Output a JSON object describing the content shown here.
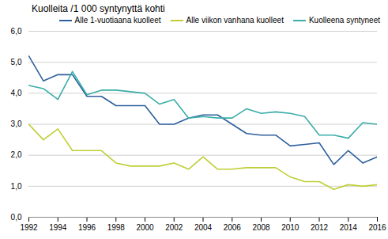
{
  "chart_data": {
    "type": "line",
    "title": "Kuolleita /1 000 syntynyttä  kohti",
    "x": [
      1992,
      1993,
      1994,
      1995,
      1996,
      1997,
      1998,
      1999,
      2000,
      2001,
      2002,
      2003,
      2004,
      2005,
      2006,
      2007,
      2008,
      2009,
      2010,
      2011,
      2012,
      2013,
      2014,
      2015,
      2016
    ],
    "series": [
      {
        "name": "Alle 1-vuotiaana kuolleet",
        "color": "#2E5F9E",
        "values": [
          5.2,
          4.4,
          4.6,
          4.6,
          3.9,
          3.9,
          3.6,
          3.6,
          3.6,
          3.0,
          3.0,
          3.2,
          3.3,
          3.3,
          3.0,
          2.7,
          2.65,
          2.65,
          2.3,
          2.35,
          2.4,
          1.7,
          2.15,
          1.75,
          1.95
        ]
      },
      {
        "name": "Alle viikon vanhana kuolleet",
        "color": "#BFCE35",
        "values": [
          3.0,
          2.5,
          2.85,
          2.15,
          2.15,
          2.15,
          1.75,
          1.65,
          1.65,
          1.65,
          1.75,
          1.55,
          1.95,
          1.55,
          1.55,
          1.6,
          1.6,
          1.6,
          1.3,
          1.15,
          1.15,
          0.9,
          1.05,
          1.0,
          1.05
        ]
      },
      {
        "name": "Kuolleena syntyneet",
        "color": "#3AADA8",
        "values": [
          4.25,
          4.15,
          3.8,
          4.7,
          3.95,
          4.1,
          4.1,
          4.05,
          4.0,
          3.65,
          3.8,
          3.2,
          3.25,
          3.2,
          3.2,
          3.5,
          3.35,
          3.4,
          3.35,
          3.25,
          2.65,
          2.65,
          2.55,
          3.05,
          3.0
        ]
      }
    ],
    "xlim": [
      1992,
      2016
    ],
    "xticks": [
      1992,
      1994,
      1996,
      1998,
      2000,
      2002,
      2004,
      2006,
      2008,
      2010,
      2012,
      2014,
      2016
    ],
    "ylim": [
      0,
      6.0
    ],
    "yticks": [
      {
        "value": 0.0,
        "label": "0,0"
      },
      {
        "value": 1.0,
        "label": "1,0"
      },
      {
        "value": 2.0,
        "label": "2,0"
      },
      {
        "value": 3.0,
        "label": "3,0"
      },
      {
        "value": 4.0,
        "label": "4,0"
      },
      {
        "value": 5.0,
        "label": "5,0"
      },
      {
        "value": 6.0,
        "label": "6,0"
      }
    ],
    "grid": true,
    "legend": "upper right"
  }
}
